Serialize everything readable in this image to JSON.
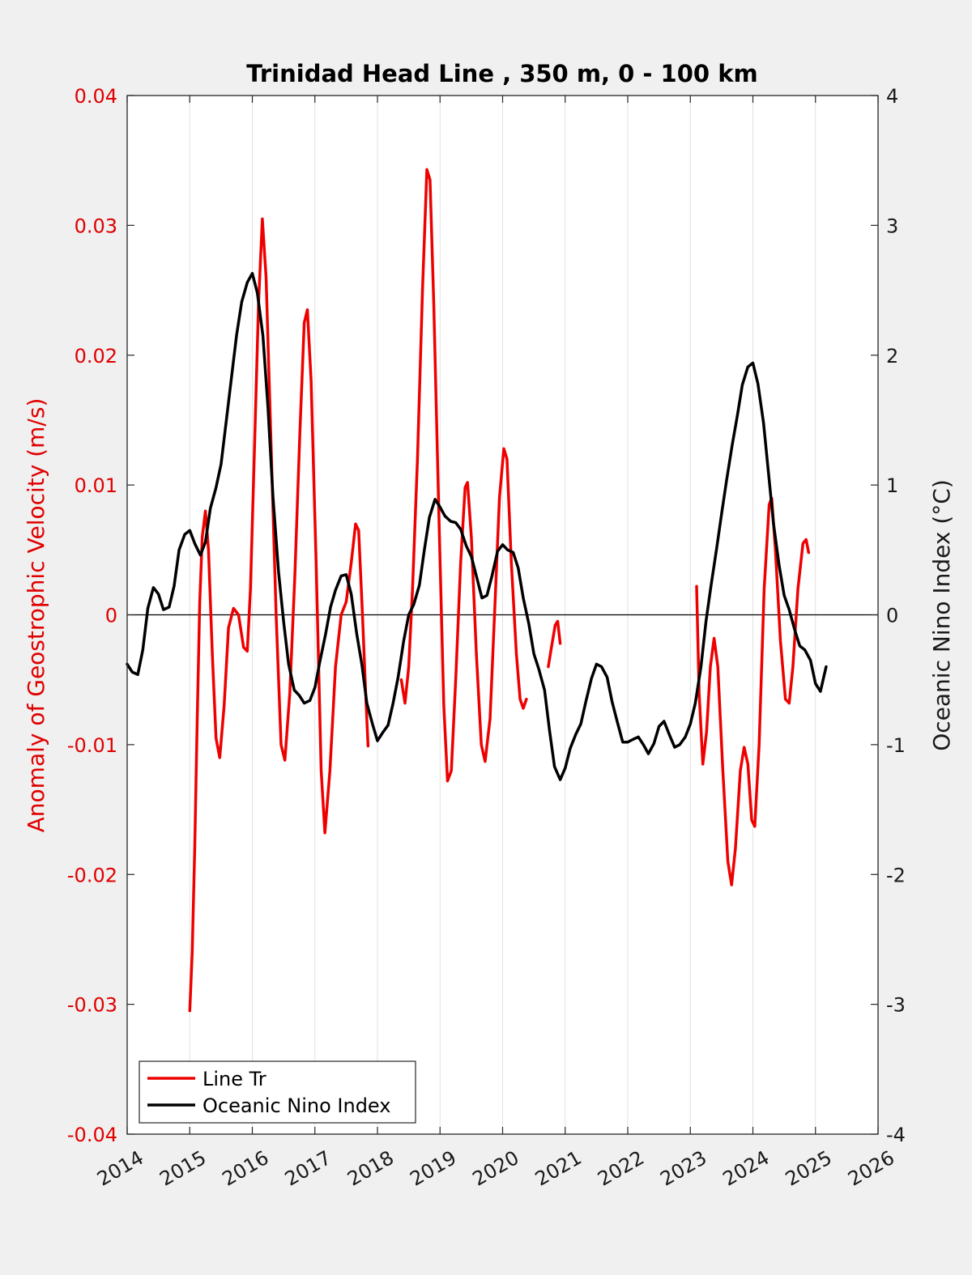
{
  "chart_data": {
    "type": "line",
    "title": "Trinidad Head Line , 350 m, 0 - 100 km",
    "ylabel": "Anomaly of Geostrophic Velocity (m/s)",
    "y2label": "Oceanic Nino Index (°C)",
    "xlim": [
      2014,
      2026
    ],
    "ylim": [
      -0.04,
      0.04
    ],
    "y2lim": [
      -4,
      4
    ],
    "grid": "vertical",
    "legend_position": "bottom-left",
    "xticks": [
      "2014",
      "2015",
      "2016",
      "2017",
      "2018",
      "2019",
      "2020",
      "2021",
      "2022",
      "2023",
      "2024",
      "2025",
      "2026"
    ],
    "yticks": [
      "-0.04",
      "-0.03",
      "-0.02",
      "-0.01",
      "0",
      "0.01",
      "0.02",
      "0.03",
      "0.04"
    ],
    "y2ticks": [
      "-4",
      "-3",
      "-2",
      "-1",
      "0",
      "1",
      "2",
      "3",
      "4"
    ],
    "colors": {
      "line_tr": "#ee0000",
      "oni": "#000000"
    },
    "series": [
      {
        "name": "Line Tr",
        "axis": "left",
        "color": "#ee0000",
        "segments": [
          [
            [
              2015.0,
              -0.0305
            ],
            [
              2015.04,
              -0.026
            ],
            [
              2015.08,
              -0.018
            ],
            [
              2015.12,
              -0.008
            ],
            [
              2015.16,
              0.001
            ],
            [
              2015.2,
              0.006
            ],
            [
              2015.25,
              0.008
            ],
            [
              2015.3,
              0.005
            ],
            [
              2015.36,
              -0.003
            ],
            [
              2015.42,
              -0.0095
            ],
            [
              2015.48,
              -0.011
            ],
            [
              2015.55,
              -0.007
            ],
            [
              2015.62,
              -0.001
            ],
            [
              2015.7,
              0.0005
            ],
            [
              2015.78,
              0.0
            ],
            [
              2015.86,
              -0.0025
            ],
            [
              2015.92,
              -0.0028
            ],
            [
              2015.97,
              0.002
            ],
            [
              2016.03,
              0.012
            ],
            [
              2016.1,
              0.024
            ],
            [
              2016.16,
              0.0305
            ],
            [
              2016.22,
              0.026
            ],
            [
              2016.3,
              0.013
            ],
            [
              2016.38,
              0.0
            ],
            [
              2016.46,
              -0.01
            ],
            [
              2016.52,
              -0.0112
            ],
            [
              2016.6,
              -0.006
            ],
            [
              2016.68,
              0.003
            ],
            [
              2016.76,
              0.014
            ],
            [
              2016.83,
              0.0225
            ],
            [
              2016.88,
              0.0235
            ],
            [
              2016.94,
              0.018
            ],
            [
              2017.02,
              0.004
            ],
            [
              2017.1,
              -0.012
            ],
            [
              2017.16,
              -0.0168
            ],
            [
              2017.24,
              -0.012
            ],
            [
              2017.33,
              -0.004
            ],
            [
              2017.42,
              0.0
            ],
            [
              2017.5,
              0.001
            ],
            [
              2017.58,
              0.004
            ],
            [
              2017.65,
              0.007
            ],
            [
              2017.7,
              0.0065
            ],
            [
              2017.76,
              0.0
            ],
            [
              2017.82,
              -0.007
            ],
            [
              2017.85,
              -0.0101
            ]
          ],
          [
            [
              2018.38,
              -0.005
            ],
            [
              2018.44,
              -0.0068
            ],
            [
              2018.5,
              -0.004
            ],
            [
              2018.56,
              0.002
            ],
            [
              2018.64,
              0.012
            ],
            [
              2018.72,
              0.025
            ],
            [
              2018.79,
              0.0343
            ],
            [
              2018.84,
              0.0335
            ],
            [
              2018.9,
              0.024
            ],
            [
              2018.98,
              0.008
            ],
            [
              2019.06,
              -0.007
            ],
            [
              2019.12,
              -0.0128
            ],
            [
              2019.18,
              -0.012
            ],
            [
              2019.25,
              -0.005
            ],
            [
              2019.33,
              0.004
            ],
            [
              2019.4,
              0.0098
            ],
            [
              2019.44,
              0.0102
            ],
            [
              2019.5,
              0.006
            ],
            [
              2019.58,
              -0.003
            ],
            [
              2019.66,
              -0.01
            ],
            [
              2019.72,
              -0.0113
            ],
            [
              2019.8,
              -0.008
            ],
            [
              2019.88,
              0.001
            ],
            [
              2019.95,
              0.009
            ],
            [
              2020.02,
              0.0128
            ],
            [
              2020.07,
              0.012
            ],
            [
              2020.14,
              0.004
            ],
            [
              2020.22,
              -0.003
            ],
            [
              2020.28,
              -0.0065
            ],
            [
              2020.33,
              -0.0072
            ],
            [
              2020.38,
              -0.0065
            ]
          ],
          [
            [
              2020.73,
              -0.004
            ],
            [
              2020.78,
              -0.0025
            ],
            [
              2020.84,
              -0.0008
            ],
            [
              2020.88,
              -0.0005
            ],
            [
              2020.92,
              -0.0022
            ]
          ],
          [
            [
              2023.1,
              0.0022
            ],
            [
              2023.14,
              -0.006
            ],
            [
              2023.2,
              -0.0115
            ],
            [
              2023.26,
              -0.009
            ],
            [
              2023.32,
              -0.004
            ],
            [
              2023.38,
              -0.0018
            ],
            [
              2023.44,
              -0.004
            ],
            [
              2023.52,
              -0.012
            ],
            [
              2023.6,
              -0.019
            ],
            [
              2023.66,
              -0.0208
            ],
            [
              2023.72,
              -0.018
            ],
            [
              2023.8,
              -0.012
            ],
            [
              2023.86,
              -0.0102
            ],
            [
              2023.92,
              -0.0115
            ],
            [
              2023.98,
              -0.0158
            ],
            [
              2024.03,
              -0.0163
            ],
            [
              2024.1,
              -0.01
            ],
            [
              2024.18,
              0.002
            ],
            [
              2024.26,
              0.0085
            ],
            [
              2024.3,
              0.009
            ],
            [
              2024.36,
              0.005
            ],
            [
              2024.44,
              -0.002
            ],
            [
              2024.52,
              -0.0065
            ],
            [
              2024.58,
              -0.0068
            ],
            [
              2024.64,
              -0.004
            ],
            [
              2024.72,
              0.002
            ],
            [
              2024.8,
              0.0055
            ],
            [
              2024.85,
              0.0058
            ],
            [
              2024.89,
              0.0048
            ]
          ]
        ]
      },
      {
        "name": "Oceanic Nino Index",
        "axis": "right",
        "color": "#000000",
        "segments": [
          [
            [
              2014.0,
              -0.38
            ],
            [
              2014.08,
              -0.44
            ],
            [
              2014.17,
              -0.46
            ],
            [
              2014.25,
              -0.27
            ],
            [
              2014.33,
              0.05
            ],
            [
              2014.42,
              0.21
            ],
            [
              2014.5,
              0.16
            ],
            [
              2014.58,
              0.04
            ],
            [
              2014.67,
              0.06
            ],
            [
              2014.75,
              0.22
            ],
            [
              2014.83,
              0.5
            ],
            [
              2014.92,
              0.62
            ],
            [
              2015.0,
              0.65
            ],
            [
              2015.08,
              0.55
            ],
            [
              2015.17,
              0.46
            ],
            [
              2015.25,
              0.56
            ],
            [
              2015.33,
              0.82
            ],
            [
              2015.42,
              0.98
            ],
            [
              2015.5,
              1.16
            ],
            [
              2015.58,
              1.48
            ],
            [
              2015.67,
              1.84
            ],
            [
              2015.75,
              2.16
            ],
            [
              2015.83,
              2.41
            ],
            [
              2015.92,
              2.56
            ],
            [
              2016.0,
              2.63
            ],
            [
              2016.08,
              2.48
            ],
            [
              2016.17,
              2.15
            ],
            [
              2016.25,
              1.6
            ],
            [
              2016.33,
              0.91
            ],
            [
              2016.42,
              0.33
            ],
            [
              2016.5,
              -0.05
            ],
            [
              2016.58,
              -0.38
            ],
            [
              2016.67,
              -0.58
            ],
            [
              2016.75,
              -0.62
            ],
            [
              2016.83,
              -0.68
            ],
            [
              2016.92,
              -0.66
            ],
            [
              2017.0,
              -0.56
            ],
            [
              2017.08,
              -0.36
            ],
            [
              2017.17,
              -0.15
            ],
            [
              2017.25,
              0.06
            ],
            [
              2017.33,
              0.19
            ],
            [
              2017.42,
              0.3
            ],
            [
              2017.5,
              0.31
            ],
            [
              2017.58,
              0.16
            ],
            [
              2017.67,
              -0.15
            ],
            [
              2017.75,
              -0.38
            ],
            [
              2017.83,
              -0.68
            ],
            [
              2017.92,
              -0.84
            ],
            [
              2018.0,
              -0.97
            ],
            [
              2018.08,
              -0.91
            ],
            [
              2018.17,
              -0.85
            ],
            [
              2018.25,
              -0.68
            ],
            [
              2018.33,
              -0.48
            ],
            [
              2018.42,
              -0.2
            ],
            [
              2018.5,
              0.0
            ],
            [
              2018.58,
              0.08
            ],
            [
              2018.67,
              0.23
            ],
            [
              2018.75,
              0.5
            ],
            [
              2018.83,
              0.75
            ],
            [
              2018.92,
              0.89
            ],
            [
              2019.0,
              0.83
            ],
            [
              2019.08,
              0.76
            ],
            [
              2019.17,
              0.72
            ],
            [
              2019.25,
              0.71
            ],
            [
              2019.33,
              0.66
            ],
            [
              2019.42,
              0.53
            ],
            [
              2019.5,
              0.45
            ],
            [
              2019.58,
              0.3
            ],
            [
              2019.67,
              0.13
            ],
            [
              2019.75,
              0.15
            ],
            [
              2019.83,
              0.3
            ],
            [
              2019.92,
              0.49
            ],
            [
              2020.0,
              0.54
            ],
            [
              2020.08,
              0.5
            ],
            [
              2020.17,
              0.48
            ],
            [
              2020.25,
              0.36
            ],
            [
              2020.33,
              0.13
            ],
            [
              2020.42,
              -0.07
            ],
            [
              2020.5,
              -0.3
            ],
            [
              2020.58,
              -0.42
            ],
            [
              2020.67,
              -0.58
            ],
            [
              2020.75,
              -0.89
            ],
            [
              2020.83,
              -1.17
            ],
            [
              2020.92,
              -1.27
            ],
            [
              2021.0,
              -1.18
            ],
            [
              2021.08,
              -1.03
            ],
            [
              2021.17,
              -0.92
            ],
            [
              2021.25,
              -0.84
            ],
            [
              2021.33,
              -0.67
            ],
            [
              2021.42,
              -0.49
            ],
            [
              2021.5,
              -0.38
            ],
            [
              2021.58,
              -0.4
            ],
            [
              2021.67,
              -0.48
            ],
            [
              2021.75,
              -0.67
            ],
            [
              2021.83,
              -0.82
            ],
            [
              2021.92,
              -0.98
            ],
            [
              2022.0,
              -0.98
            ],
            [
              2022.08,
              -0.96
            ],
            [
              2022.17,
              -0.94
            ],
            [
              2022.25,
              -1.0
            ],
            [
              2022.33,
              -1.07
            ],
            [
              2022.42,
              -0.99
            ],
            [
              2022.5,
              -0.86
            ],
            [
              2022.58,
              -0.82
            ],
            [
              2022.67,
              -0.93
            ],
            [
              2022.75,
              -1.02
            ],
            [
              2022.83,
              -1.0
            ],
            [
              2022.92,
              -0.94
            ],
            [
              2023.0,
              -0.84
            ],
            [
              2023.08,
              -0.68
            ],
            [
              2023.17,
              -0.4
            ],
            [
              2023.25,
              -0.05
            ],
            [
              2023.33,
              0.22
            ],
            [
              2023.42,
              0.51
            ],
            [
              2023.5,
              0.78
            ],
            [
              2023.58,
              1.04
            ],
            [
              2023.67,
              1.31
            ],
            [
              2023.75,
              1.53
            ],
            [
              2023.83,
              1.77
            ],
            [
              2023.92,
              1.91
            ],
            [
              2024.0,
              1.94
            ],
            [
              2024.08,
              1.78
            ],
            [
              2024.17,
              1.48
            ],
            [
              2024.25,
              1.09
            ],
            [
              2024.33,
              0.7
            ],
            [
              2024.42,
              0.38
            ],
            [
              2024.5,
              0.15
            ],
            [
              2024.58,
              0.04
            ],
            [
              2024.67,
              -0.12
            ],
            [
              2024.75,
              -0.24
            ],
            [
              2024.83,
              -0.27
            ],
            [
              2024.92,
              -0.35
            ],
            [
              2025.0,
              -0.53
            ],
            [
              2025.08,
              -0.59
            ],
            [
              2025.17,
              -0.4
            ]
          ]
        ]
      }
    ]
  }
}
